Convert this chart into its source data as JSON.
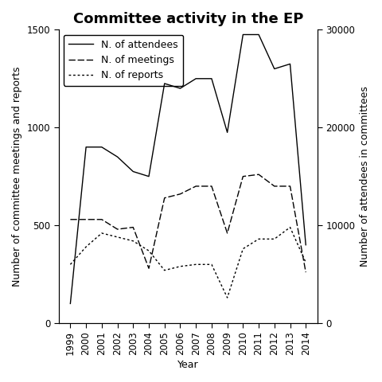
{
  "title": "Committee activity in the EP",
  "years": [
    1999,
    2000,
    2001,
    2002,
    2003,
    2004,
    2005,
    2006,
    2007,
    2008,
    2009,
    2010,
    2011,
    2012,
    2013,
    2014
  ],
  "attendees": [
    2000,
    18000,
    18000,
    17000,
    15500,
    15000,
    24500,
    24000,
    25000,
    25000,
    19500,
    29500,
    29500,
    26000,
    26500,
    8000
  ],
  "meetings": [
    530,
    530,
    530,
    480,
    490,
    280,
    640,
    660,
    700,
    700,
    460,
    750,
    760,
    700,
    700,
    260
  ],
  "reports": [
    300,
    390,
    460,
    440,
    420,
    370,
    270,
    290,
    300,
    300,
    130,
    380,
    430,
    430,
    490,
    310
  ],
  "ylabel_left": "Number of committee meetings and reports",
  "ylabel_right": "Number of attendees in committees",
  "xlabel": "Year",
  "ylim_left": [
    0,
    1500
  ],
  "ylim_right": [
    0,
    30000
  ],
  "yticks_left": [
    0,
    500,
    1000,
    1500
  ],
  "yticks_right": [
    0,
    10000,
    20000,
    30000
  ],
  "legend_labels": [
    "N. of attendees",
    "N. of meetings",
    "N. of reports"
  ],
  "line_colors": [
    "black",
    "black",
    "black"
  ],
  "line_styles_solid": "-",
  "line_styles_dash": "--",
  "line_styles_dot": ":",
  "background_color": "#ffffff",
  "title_fontsize": 13,
  "label_fontsize": 9,
  "tick_fontsize": 8.5,
  "legend_fontsize": 9,
  "linewidth": 1.0
}
